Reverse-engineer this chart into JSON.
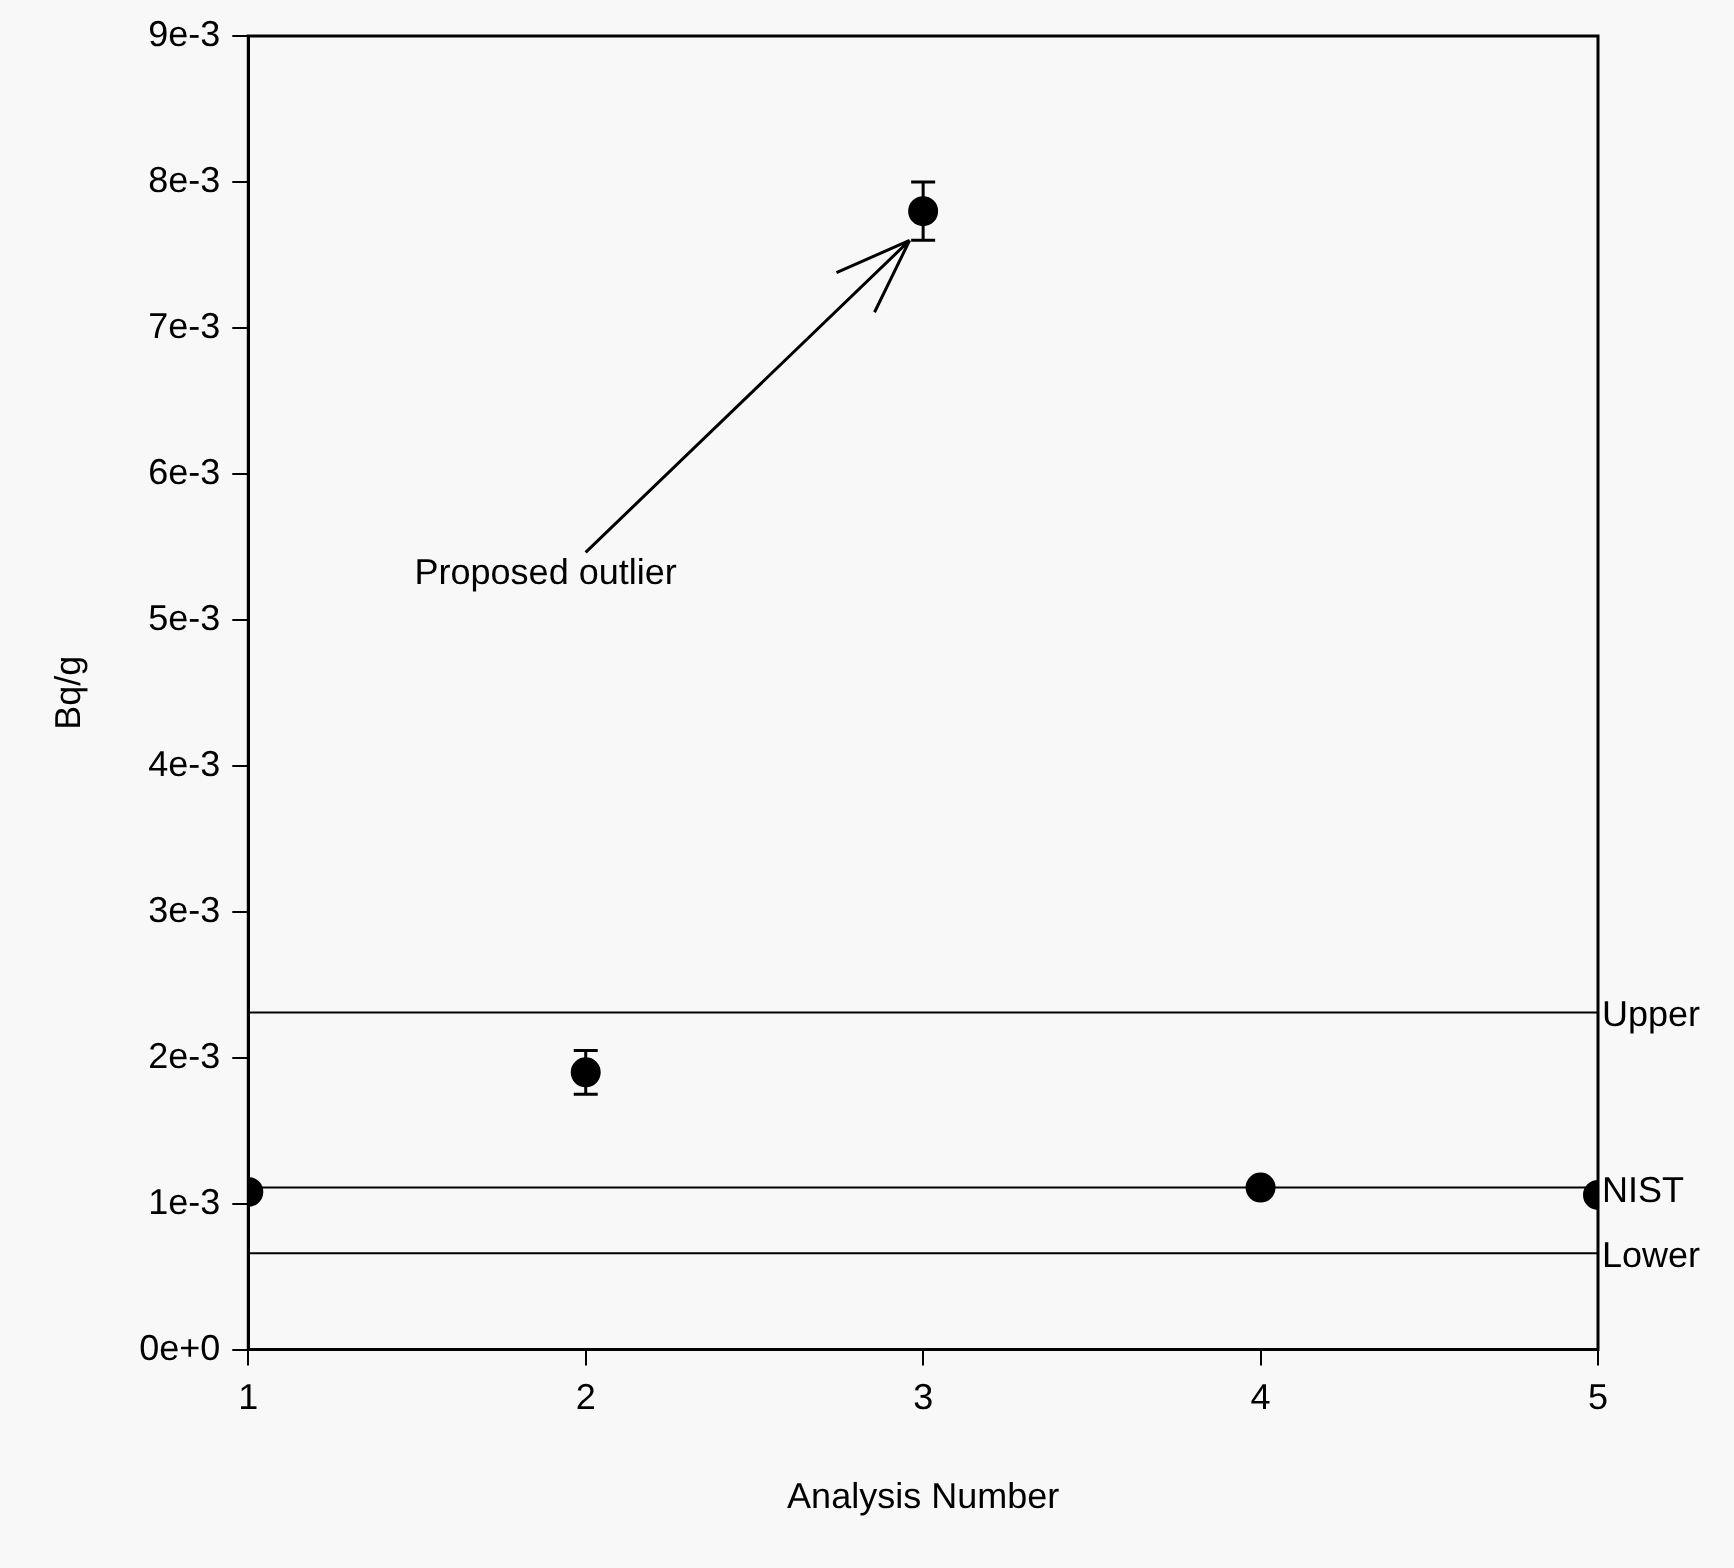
{
  "chart_data": {
    "type": "scatter",
    "xlabel": "Analysis Number",
    "ylabel": "Bq/g",
    "x": [
      1,
      2,
      3,
      4,
      5
    ],
    "values": [
      0.00108,
      0.0019,
      0.0078,
      0.00111,
      0.00106
    ],
    "errors": [
      null,
      0.00015,
      0.0002,
      null,
      null
    ],
    "color": "#000000",
    "marker": "circle",
    "xlim": [
      1,
      5
    ],
    "xticks": [
      1,
      2,
      3,
      4,
      5
    ],
    "ylim": [
      0,
      0.009
    ],
    "yticks": [
      {
        "value": 0,
        "label": "0e+0"
      },
      {
        "value": 0.001,
        "label": "1e-3"
      },
      {
        "value": 0.002,
        "label": "2e-3"
      },
      {
        "value": 0.003,
        "label": "3e-3"
      },
      {
        "value": 0.004,
        "label": "4e-3"
      },
      {
        "value": 0.005,
        "label": "5e-3"
      },
      {
        "value": 0.006,
        "label": "6e-3"
      },
      {
        "value": 0.007,
        "label": "7e-3"
      },
      {
        "value": 0.008,
        "label": "8e-3"
      },
      {
        "value": 0.009,
        "label": "9e-3"
      }
    ],
    "ref_lines": [
      {
        "axis": "y",
        "value": 0.00231,
        "label": "Upper"
      },
      {
        "axis": "y",
        "value": 0.00111,
        "label": "NIST"
      },
      {
        "axis": "y",
        "value": 0.00066,
        "label": "Lower"
      }
    ],
    "annotations": [
      {
        "text": "Proposed outlier",
        "x": 2.96,
        "y": 0.0076
      }
    ],
    "grid": false,
    "legend": false
  }
}
